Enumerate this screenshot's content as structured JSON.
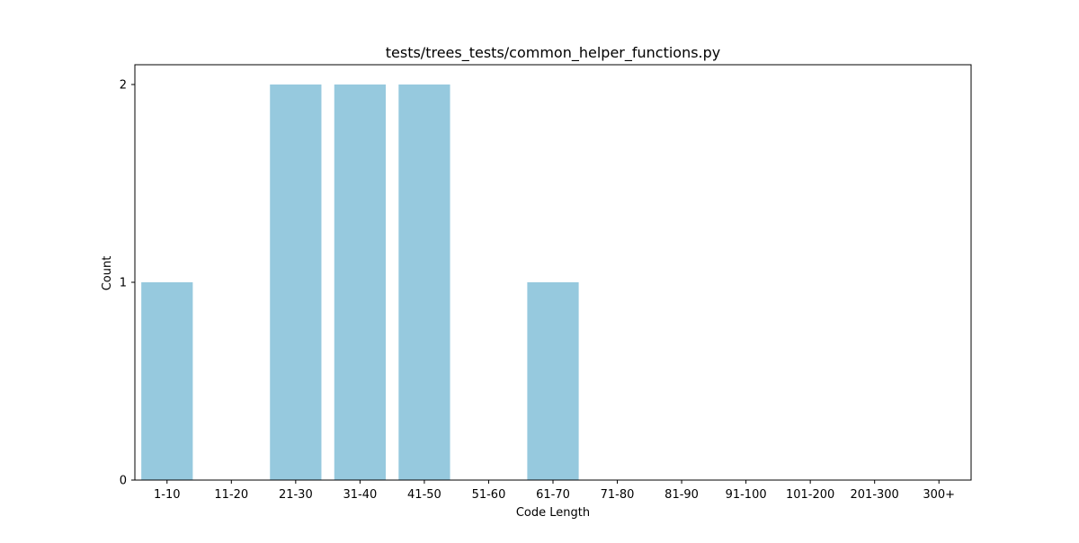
{
  "chart_data": {
    "type": "bar",
    "title": "tests/trees_tests/common_helper_functions.py",
    "xlabel": "Code Length",
    "ylabel": "Count",
    "categories": [
      "1-10",
      "11-20",
      "21-30",
      "31-40",
      "41-50",
      "51-60",
      "61-70",
      "71-80",
      "81-90",
      "91-100",
      "101-200",
      "201-300",
      "300+"
    ],
    "values": [
      1,
      0,
      2,
      2,
      2,
      0,
      1,
      0,
      0,
      0,
      0,
      0,
      0
    ],
    "ylim": [
      0,
      2.1
    ],
    "yticks": [
      0,
      1,
      2
    ],
    "grid": false,
    "bar_color": "#96c9de"
  }
}
